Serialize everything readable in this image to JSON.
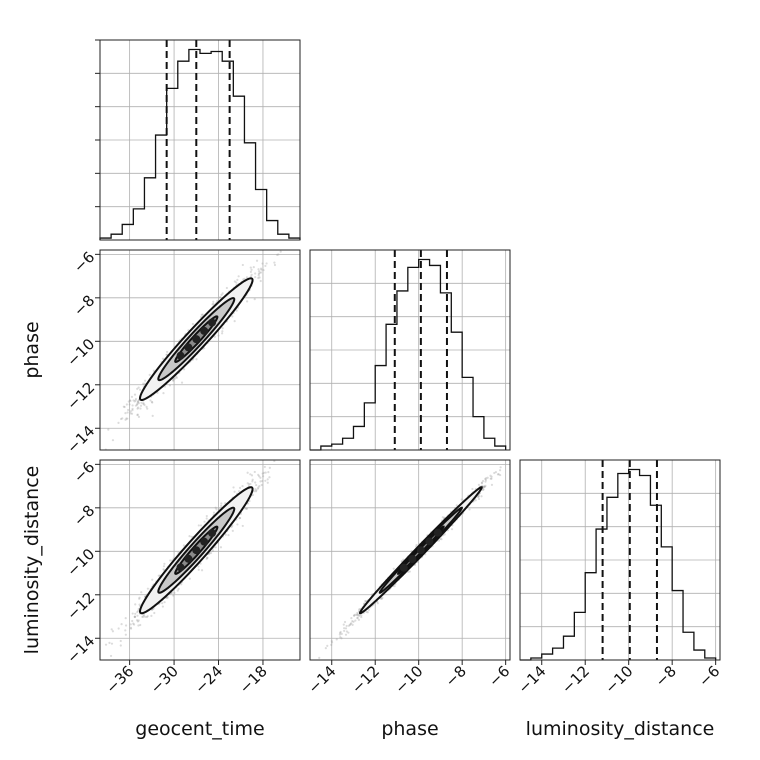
{
  "figure_type": "corner plot",
  "chart_data": {
    "type": "corner",
    "parameters": [
      "geocent_time",
      "phase",
      "luminosity_distance"
    ],
    "axes_labels": {
      "geocent_time": "geocent_time",
      "phase": "phase",
      "luminosity_distance": "luminosity_distance"
    },
    "ranges": {
      "geocent_time": [
        -40,
        -13
      ],
      "phase": [
        -15,
        -5.8
      ],
      "luminosity_distance": [
        -15,
        -5.8
      ]
    },
    "ticks": {
      "geocent_time": [
        -36,
        -30,
        -24,
        -18
      ],
      "phase": [
        -14,
        -12,
        -10,
        -8,
        -6
      ],
      "luminosity_distance": [
        -14,
        -12,
        -10,
        -8,
        -6
      ]
    },
    "grid": true,
    "colors": {
      "line": "#111111",
      "grid": "#b0b0b0",
      "samples": "#9a9a9a"
    },
    "quantiles": {
      "geocent_time": [
        -31.0,
        -27.0,
        -22.5
      ],
      "phase": [
        -11.1,
        -9.9,
        -8.7
      ],
      "luminosity_distance": [
        -11.2,
        -9.95,
        -8.7
      ]
    },
    "histograms": {
      "geocent_time": {
        "bin_edges": [
          -40,
          -38.5,
          -37,
          -35.5,
          -34,
          -32.5,
          -31,
          -29.5,
          -28,
          -26.5,
          -25,
          -23.5,
          -22,
          -20.5,
          -19,
          -17.5,
          -16,
          -14.5,
          -13
        ],
        "counts": [
          0.01,
          0.03,
          0.08,
          0.16,
          0.32,
          0.54,
          0.78,
          0.92,
          0.98,
          0.96,
          0.97,
          0.92,
          0.74,
          0.5,
          0.26,
          0.1,
          0.03,
          0.01
        ]
      },
      "phase": {
        "bin_edges": [
          -15,
          -14.5,
          -14,
          -13.5,
          -13,
          -12.5,
          -12,
          -11.5,
          -11,
          -10.5,
          -10,
          -9.5,
          -9,
          -8.5,
          -8,
          -7.5,
          -7,
          -6.5,
          -6
        ],
        "counts": [
          0,
          0.02,
          0.03,
          0.06,
          0.12,
          0.24,
          0.43,
          0.64,
          0.81,
          0.93,
          0.97,
          0.94,
          0.8,
          0.6,
          0.37,
          0.17,
          0.06,
          0.02
        ]
      },
      "luminosity_distance": {
        "bin_edges": [
          -15,
          -14.5,
          -14,
          -13.5,
          -13,
          -12.5,
          -12,
          -11.5,
          -11,
          -10.5,
          -10,
          -9.5,
          -9,
          -8.5,
          -8,
          -7.5,
          -7,
          -6.5,
          -6
        ],
        "counts": [
          0,
          0.01,
          0.03,
          0.06,
          0.12,
          0.24,
          0.44,
          0.66,
          0.82,
          0.94,
          0.96,
          0.93,
          0.78,
          0.57,
          0.35,
          0.14,
          0.05,
          0.01
        ]
      }
    },
    "joint": {
      "phase_vs_geocent_time": {
        "mean": [
          -27,
          -9.9
        ],
        "sd": [
          3.8,
          1.4
        ],
        "corr": 0.97
      },
      "luminosity_distance_vs_geocent_time": {
        "mean": [
          -27,
          -9.95
        ],
        "sd": [
          3.8,
          1.45
        ],
        "corr": 0.97
      },
      "luminosity_distance_vs_phase": {
        "mean": [
          -9.9,
          -9.95
        ],
        "sd": [
          1.4,
          1.45
        ],
        "corr": 0.995
      }
    }
  }
}
